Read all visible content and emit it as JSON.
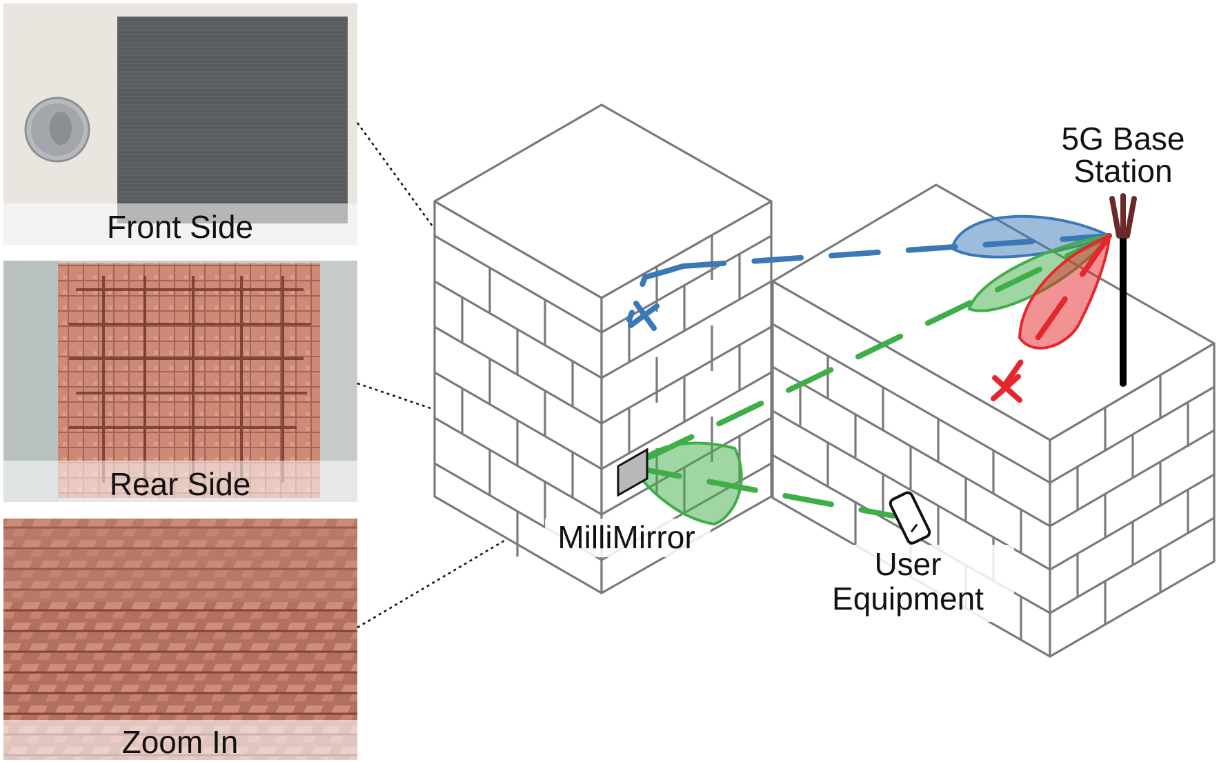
{
  "photos": {
    "front": {
      "caption": "Front Side"
    },
    "rear": {
      "caption": "Rear Side"
    },
    "zoom": {
      "caption": "Zoom In"
    }
  },
  "labels": {
    "base_station_line1": "5G Base",
    "base_station_line2": "Station",
    "millimirror": "MilliMirror",
    "user_line1": "User",
    "user_line2": "Equipment"
  },
  "colors": {
    "blue_beam": "#3b78b8",
    "green_beam": "#3fae48",
    "red_beam": "#e5262a",
    "antenna": "#6b2a2a",
    "wall": "#7a7a7a"
  },
  "icons": [
    "coin-icon",
    "phone-icon",
    "antenna-icon",
    "x-mark-icon"
  ]
}
